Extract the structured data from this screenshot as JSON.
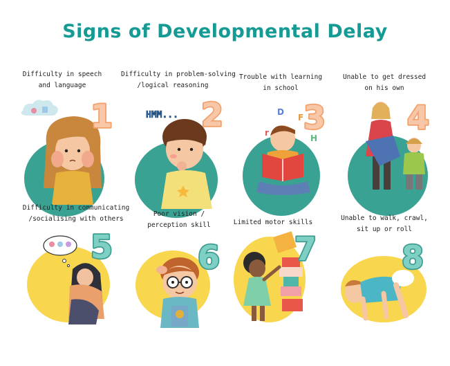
{
  "title": "Signs of Developmental Delay",
  "colors": {
    "title": "#159a94",
    "teal_blob": "#3aa293",
    "yellow_blob": "#f8d64e",
    "number_peach": "#f7c7a7",
    "number_peach_edge": "#f4a06a",
    "number_teal": "#7fd0c4",
    "number_teal_edge": "#3f9c91"
  },
  "signs": [
    {
      "number": "1",
      "lines": [
        "Difficulty in speech",
        "and language"
      ],
      "theme": "teal",
      "icon": "girl-covering-cheeks-icon",
      "extra": ""
    },
    {
      "number": "2",
      "lines": [
        "Difficulty in problem-solving",
        "/logical reasoning"
      ],
      "theme": "teal",
      "icon": "thinking-boy-icon",
      "extra": "HMM..."
    },
    {
      "number": "3",
      "lines": [
        "Trouble with learning",
        "in school"
      ],
      "theme": "teal",
      "icon": "boy-reading-book-icon",
      "extra": ""
    },
    {
      "number": "4",
      "lines": [
        "Unable to get dressed",
        "on his own"
      ],
      "theme": "teal",
      "icon": "mother-dressing-child-icon",
      "extra": ""
    },
    {
      "number": "5",
      "lines": [
        "Difficulty in communicating",
        "/socialising with others"
      ],
      "theme": "yellow",
      "icon": "sad-girl-hugging-knees-icon",
      "extra": ""
    },
    {
      "number": "6",
      "lines": [
        "Poor vision /",
        "perception skill"
      ],
      "theme": "yellow",
      "icon": "boy-with-glasses-icon",
      "extra": ""
    },
    {
      "number": "7",
      "lines": [
        "Limited motor skills"
      ],
      "theme": "yellow",
      "icon": "girl-stacking-blocks-icon",
      "extra": ""
    },
    {
      "number": "8",
      "lines": [
        "Unable to walk, crawl,",
        "sit up or roll"
      ],
      "theme": "yellow",
      "icon": "baby-crawling-icon",
      "extra": ""
    }
  ]
}
